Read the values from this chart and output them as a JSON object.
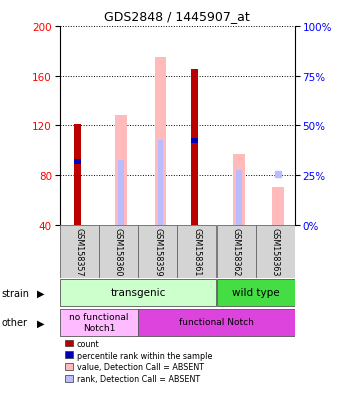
{
  "title": "GDS2848 / 1445907_at",
  "samples": [
    "GSM158357",
    "GSM158360",
    "GSM158359",
    "GSM158361",
    "GSM158362",
    "GSM158363"
  ],
  "ylim_left": [
    40,
    200
  ],
  "ylim_right": [
    0,
    100
  ],
  "yticks_left": [
    40,
    80,
    120,
    160,
    200
  ],
  "yticks_right": [
    0,
    25,
    50,
    75,
    100
  ],
  "count_values": [
    121,
    0,
    0,
    165,
    0,
    0
  ],
  "percentile_rank": [
    91,
    0,
    0,
    108,
    0,
    0
  ],
  "absent_value": [
    0,
    128,
    175,
    0,
    97,
    70
  ],
  "absent_rank": [
    0,
    92,
    108,
    0,
    84,
    0
  ],
  "absent_rank_dot": [
    0,
    0,
    0,
    0,
    0,
    81
  ],
  "color_count": "#bb0000",
  "color_rank": "#0000bb",
  "color_absent_value": "#ffbbbb",
  "color_absent_rank": "#bbbbff",
  "strain_groups": [
    {
      "label": "transgenic",
      "start": 0,
      "end": 4,
      "color": "#ccffcc"
    },
    {
      "label": "wild type",
      "start": 4,
      "end": 6,
      "color": "#44dd44"
    }
  ],
  "other_groups": [
    {
      "label": "no functional\nNotch1",
      "start": 0,
      "end": 2,
      "color": "#ffbbff"
    },
    {
      "label": "functional Notch",
      "start": 2,
      "end": 6,
      "color": "#dd44dd"
    }
  ],
  "legend_items": [
    {
      "label": "count",
      "color": "#bb0000"
    },
    {
      "label": "percentile rank within the sample",
      "color": "#0000bb"
    },
    {
      "label": "value, Detection Call = ABSENT",
      "color": "#ffbbbb"
    },
    {
      "label": "rank, Detection Call = ABSENT",
      "color": "#bbbbff"
    }
  ]
}
